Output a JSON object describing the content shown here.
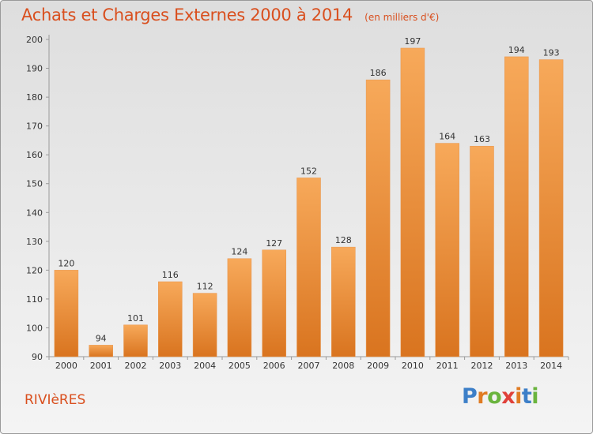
{
  "header": {
    "title": "Achats et Charges Externes 2000 à 2014",
    "unit": "(en milliers d'€)"
  },
  "footer": {
    "commune": "RIVIèRES",
    "logo_text": "Proxiti"
  },
  "colors": {
    "title": "#d94f1e",
    "bar_light": "#f7a95a",
    "bar_dark": "#d9741f",
    "logo": [
      "#3d7fc8",
      "#e07b22",
      "#6ab43e",
      "#e0413a",
      "#e07b22",
      "#3d7fc8",
      "#6ab43e"
    ]
  },
  "chart_data": {
    "type": "bar",
    "title": "Achats et Charges Externes 2000 à 2014",
    "subtitle": "(en milliers d'€)",
    "categories": [
      "2000",
      "2001",
      "2002",
      "2003",
      "2004",
      "2005",
      "2006",
      "2007",
      "2008",
      "2009",
      "2010",
      "2011",
      "2012",
      "2013",
      "2014"
    ],
    "values": [
      120,
      94,
      101,
      116,
      112,
      124,
      127,
      152,
      128,
      186,
      197,
      164,
      163,
      194,
      193
    ],
    "ylim": [
      90,
      200
    ],
    "yticks": [
      90,
      100,
      110,
      120,
      130,
      140,
      150,
      160,
      170,
      180,
      190,
      200
    ],
    "grid": false,
    "legend": "none",
    "data_labels": true
  }
}
